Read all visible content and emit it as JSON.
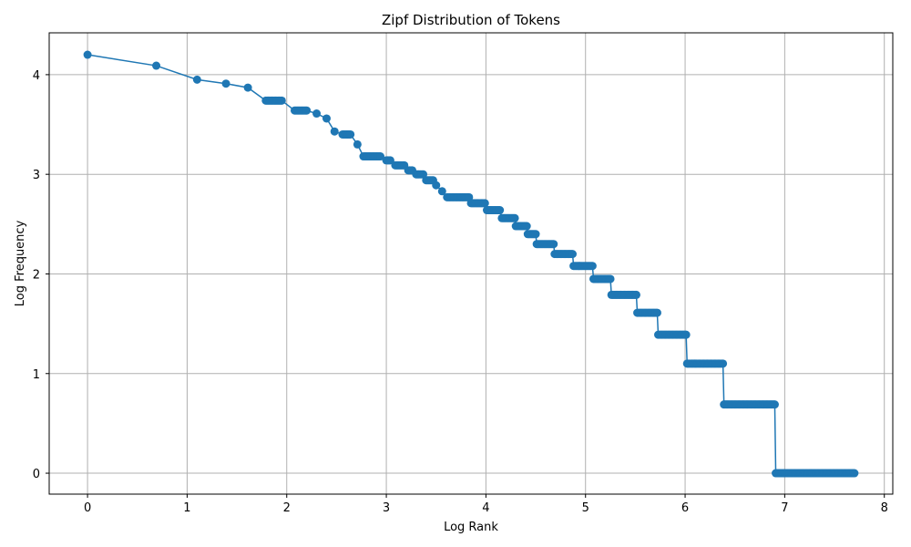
{
  "chart_data": {
    "type": "line",
    "title": "Zipf Distribution of Tokens",
    "xlabel": "Log Rank",
    "ylabel": "Log Frequency",
    "xlim": [
      -0.385,
      8.085
    ],
    "ylim": [
      -0.21,
      4.42
    ],
    "x_ticks": [
      0,
      1,
      2,
      3,
      4,
      5,
      6,
      7,
      8
    ],
    "y_ticks": [
      0,
      1,
      2,
      3,
      4
    ],
    "grid": true,
    "marker": "circle",
    "series_color": "#1f77b4",
    "series": [
      {
        "x": [
          0,
          0.69,
          1.1,
          1.39,
          1.61,
          1.79,
          1.95,
          2.08,
          2.2,
          2.3
        ],
        "y": [
          4.2,
          4.09,
          3.95,
          3.91,
          3.87,
          3.74,
          3.74,
          3.64,
          3.64,
          3.61
        ]
      }
    ],
    "sampled_points": [
      [
        2.4,
        3.56
      ],
      [
        2.48,
        3.43
      ],
      [
        2.56,
        3.4
      ],
      [
        2.64,
        3.4
      ],
      [
        2.71,
        3.3
      ],
      [
        2.77,
        3.18
      ],
      [
        2.83,
        3.18
      ],
      [
        2.89,
        3.18
      ],
      [
        2.94,
        3.18
      ],
      [
        3.0,
        3.14
      ],
      [
        3.04,
        3.14
      ],
      [
        3.09,
        3.09
      ],
      [
        3.14,
        3.09
      ],
      [
        3.18,
        3.09
      ],
      [
        3.22,
        3.04
      ],
      [
        3.26,
        3.04
      ],
      [
        3.3,
        3.0
      ],
      [
        3.33,
        3.0
      ],
      [
        3.37,
        3.0
      ],
      [
        3.4,
        2.94
      ],
      [
        3.47,
        2.94
      ],
      [
        3.5,
        2.89
      ],
      [
        3.56,
        2.83
      ],
      [
        3.61,
        2.77
      ],
      [
        3.71,
        2.77
      ],
      [
        3.83,
        2.77
      ],
      [
        3.85,
        2.71
      ],
      [
        3.99,
        2.71
      ],
      [
        4.01,
        2.64
      ],
      [
        4.14,
        2.64
      ],
      [
        4.16,
        2.56
      ],
      [
        4.29,
        2.56
      ],
      [
        4.3,
        2.48
      ],
      [
        4.41,
        2.48
      ],
      [
        4.42,
        2.4
      ],
      [
        4.5,
        2.4
      ],
      [
        4.51,
        2.3
      ],
      [
        4.68,
        2.3
      ],
      [
        4.69,
        2.2
      ],
      [
        4.87,
        2.2
      ],
      [
        4.88,
        2.08
      ],
      [
        5.07,
        2.08
      ],
      [
        5.08,
        1.95
      ],
      [
        5.25,
        1.95
      ],
      [
        5.26,
        1.79
      ],
      [
        5.51,
        1.79
      ],
      [
        5.52,
        1.61
      ],
      [
        5.72,
        1.61
      ],
      [
        5.73,
        1.39
      ],
      [
        6.01,
        1.39
      ],
      [
        6.02,
        1.1
      ],
      [
        6.38,
        1.1
      ],
      [
        6.39,
        0.69
      ],
      [
        6.9,
        0.69
      ],
      [
        6.91,
        0.0
      ],
      [
        7.7,
        0.0
      ]
    ]
  }
}
